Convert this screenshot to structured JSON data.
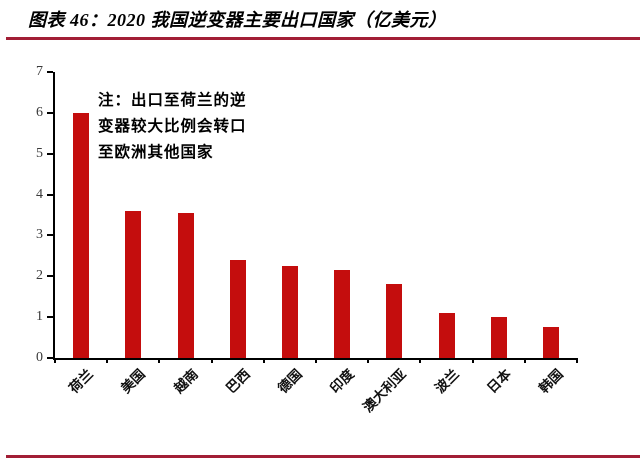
{
  "header": {
    "title": "图表 46：2020 我国逆变器主要出口国家（亿美元）",
    "accent_color": "#A21E35"
  },
  "note": {
    "lines": [
      "注：出口至荷兰的逆",
      "变器较大比例会转口",
      "至欧洲其他国家"
    ]
  },
  "chart_data": {
    "type": "bar",
    "title": "图表 46：2020 我国逆变器主要出口国家（亿美元）",
    "categories": [
      "荷兰",
      "美国",
      "越南",
      "巴西",
      "德国",
      "印度",
      "澳大利亚",
      "波兰",
      "日本",
      "韩国"
    ],
    "values": [
      6.0,
      3.6,
      3.55,
      2.4,
      2.25,
      2.15,
      1.8,
      1.1,
      1.0,
      0.75
    ],
    "unit": "亿美元",
    "xlabel": "",
    "ylabel": "",
    "ylim": [
      0,
      7
    ],
    "yticks": [
      0,
      1,
      2,
      3,
      4,
      5,
      6,
      7
    ],
    "grid": false,
    "legend_position": "none",
    "bar_color": "#C40D0D",
    "annotation": "注：出口至荷兰的逆变器较大比例会转口至欧洲其他国家"
  }
}
